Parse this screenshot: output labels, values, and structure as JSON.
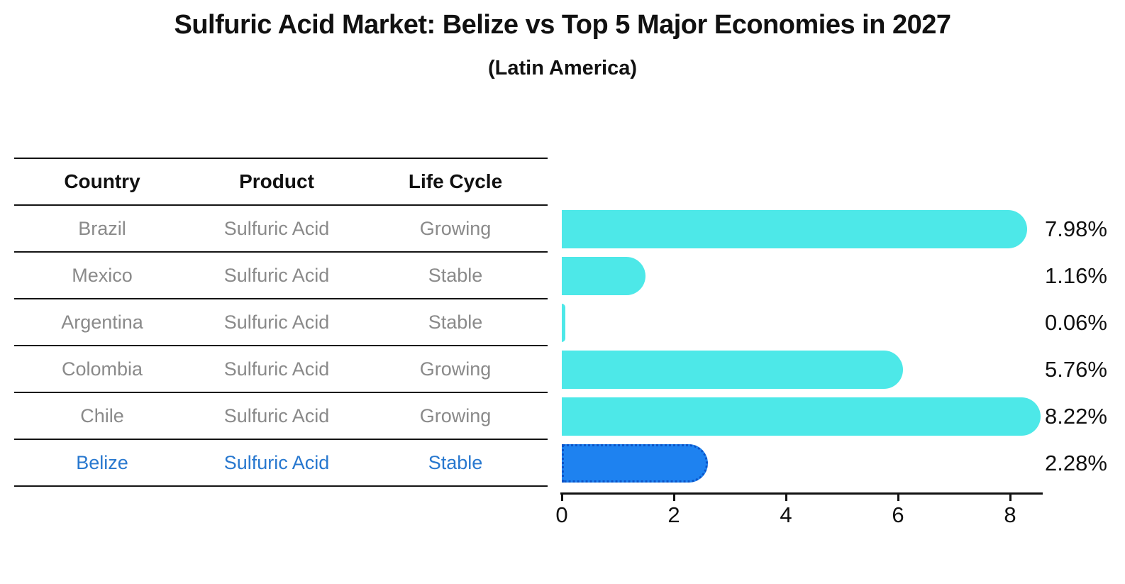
{
  "title": "Sulfuric Acid Market: Belize vs Top 5 Major Economies in 2027",
  "subtitle": "(Latin America)",
  "table": {
    "headers": [
      "Country",
      "Product",
      "Life Cycle"
    ],
    "rows": [
      {
        "country": "Brazil",
        "product": "Sulfuric Acid",
        "life_cycle": "Growing",
        "highlight": false
      },
      {
        "country": "Mexico",
        "product": "Sulfuric Acid",
        "life_cycle": "Stable",
        "highlight": false
      },
      {
        "country": "Argentina",
        "product": "Sulfuric Acid",
        "life_cycle": "Stable",
        "highlight": false
      },
      {
        "country": "Colombia",
        "product": "Sulfuric Acid",
        "life_cycle": "Growing",
        "highlight": false
      },
      {
        "country": "Chile",
        "product": "Sulfuric Acid",
        "life_cycle": "Growing",
        "highlight": false
      },
      {
        "country": "Belize",
        "product": "Sulfuric Acid",
        "life_cycle": "Stable",
        "highlight": true
      }
    ]
  },
  "chart_data": {
    "type": "bar",
    "orientation": "horizontal",
    "title": "Sulfuric Acid Market: Belize vs Top 5 Major Economies in 2027 (Latin America)",
    "categories": [
      "Brazil",
      "Mexico",
      "Argentina",
      "Colombia",
      "Chile",
      "Belize"
    ],
    "values": [
      7.98,
      1.16,
      0.06,
      5.76,
      8.22,
      2.28
    ],
    "value_labels": [
      "7.98%",
      "1.16%",
      "0.06%",
      "5.76%",
      "8.22%",
      "2.28%"
    ],
    "xticks": [
      0,
      2,
      4,
      6,
      8
    ],
    "xlim": [
      0,
      8.6
    ],
    "grid": false,
    "legend": false,
    "bar_color": "#4de8e8",
    "highlight_color": "#1e82f0",
    "highlight_border_color": "#0b54c8",
    "highlight_index": 5,
    "highlight_text_color": "#2878cf"
  }
}
